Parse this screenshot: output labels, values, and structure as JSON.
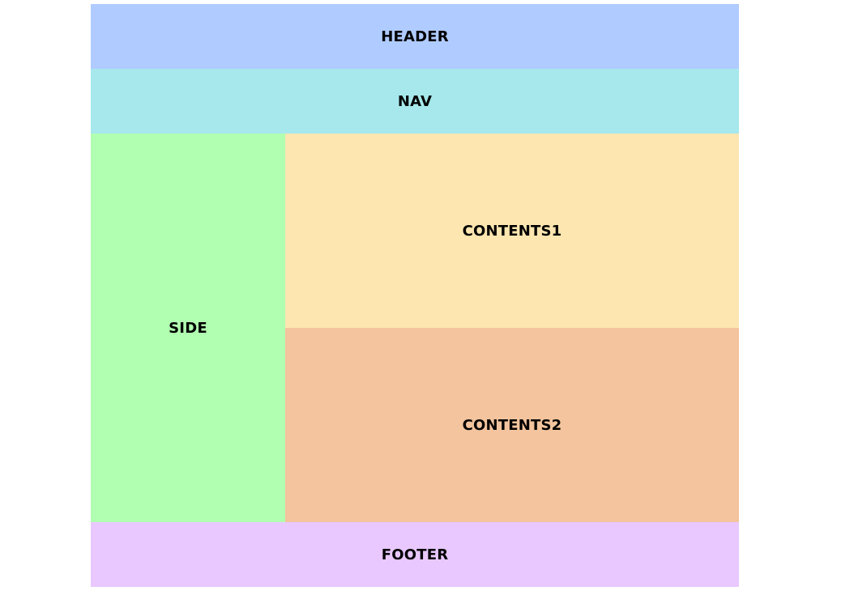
{
  "header": {
    "label": "HEADER",
    "color": "#b0cbff"
  },
  "nav": {
    "label": "NAV",
    "color": "#a6e8ec"
  },
  "side": {
    "label": "SIDE",
    "color": "#b1ffb1"
  },
  "contents1": {
    "label": "CONTENTS1",
    "color": "#fde6b0"
  },
  "contents2": {
    "label": "CONTENTS2",
    "color": "#f3c49d"
  },
  "footer": {
    "label": "FOOTER",
    "color": "#e8c8ff"
  }
}
